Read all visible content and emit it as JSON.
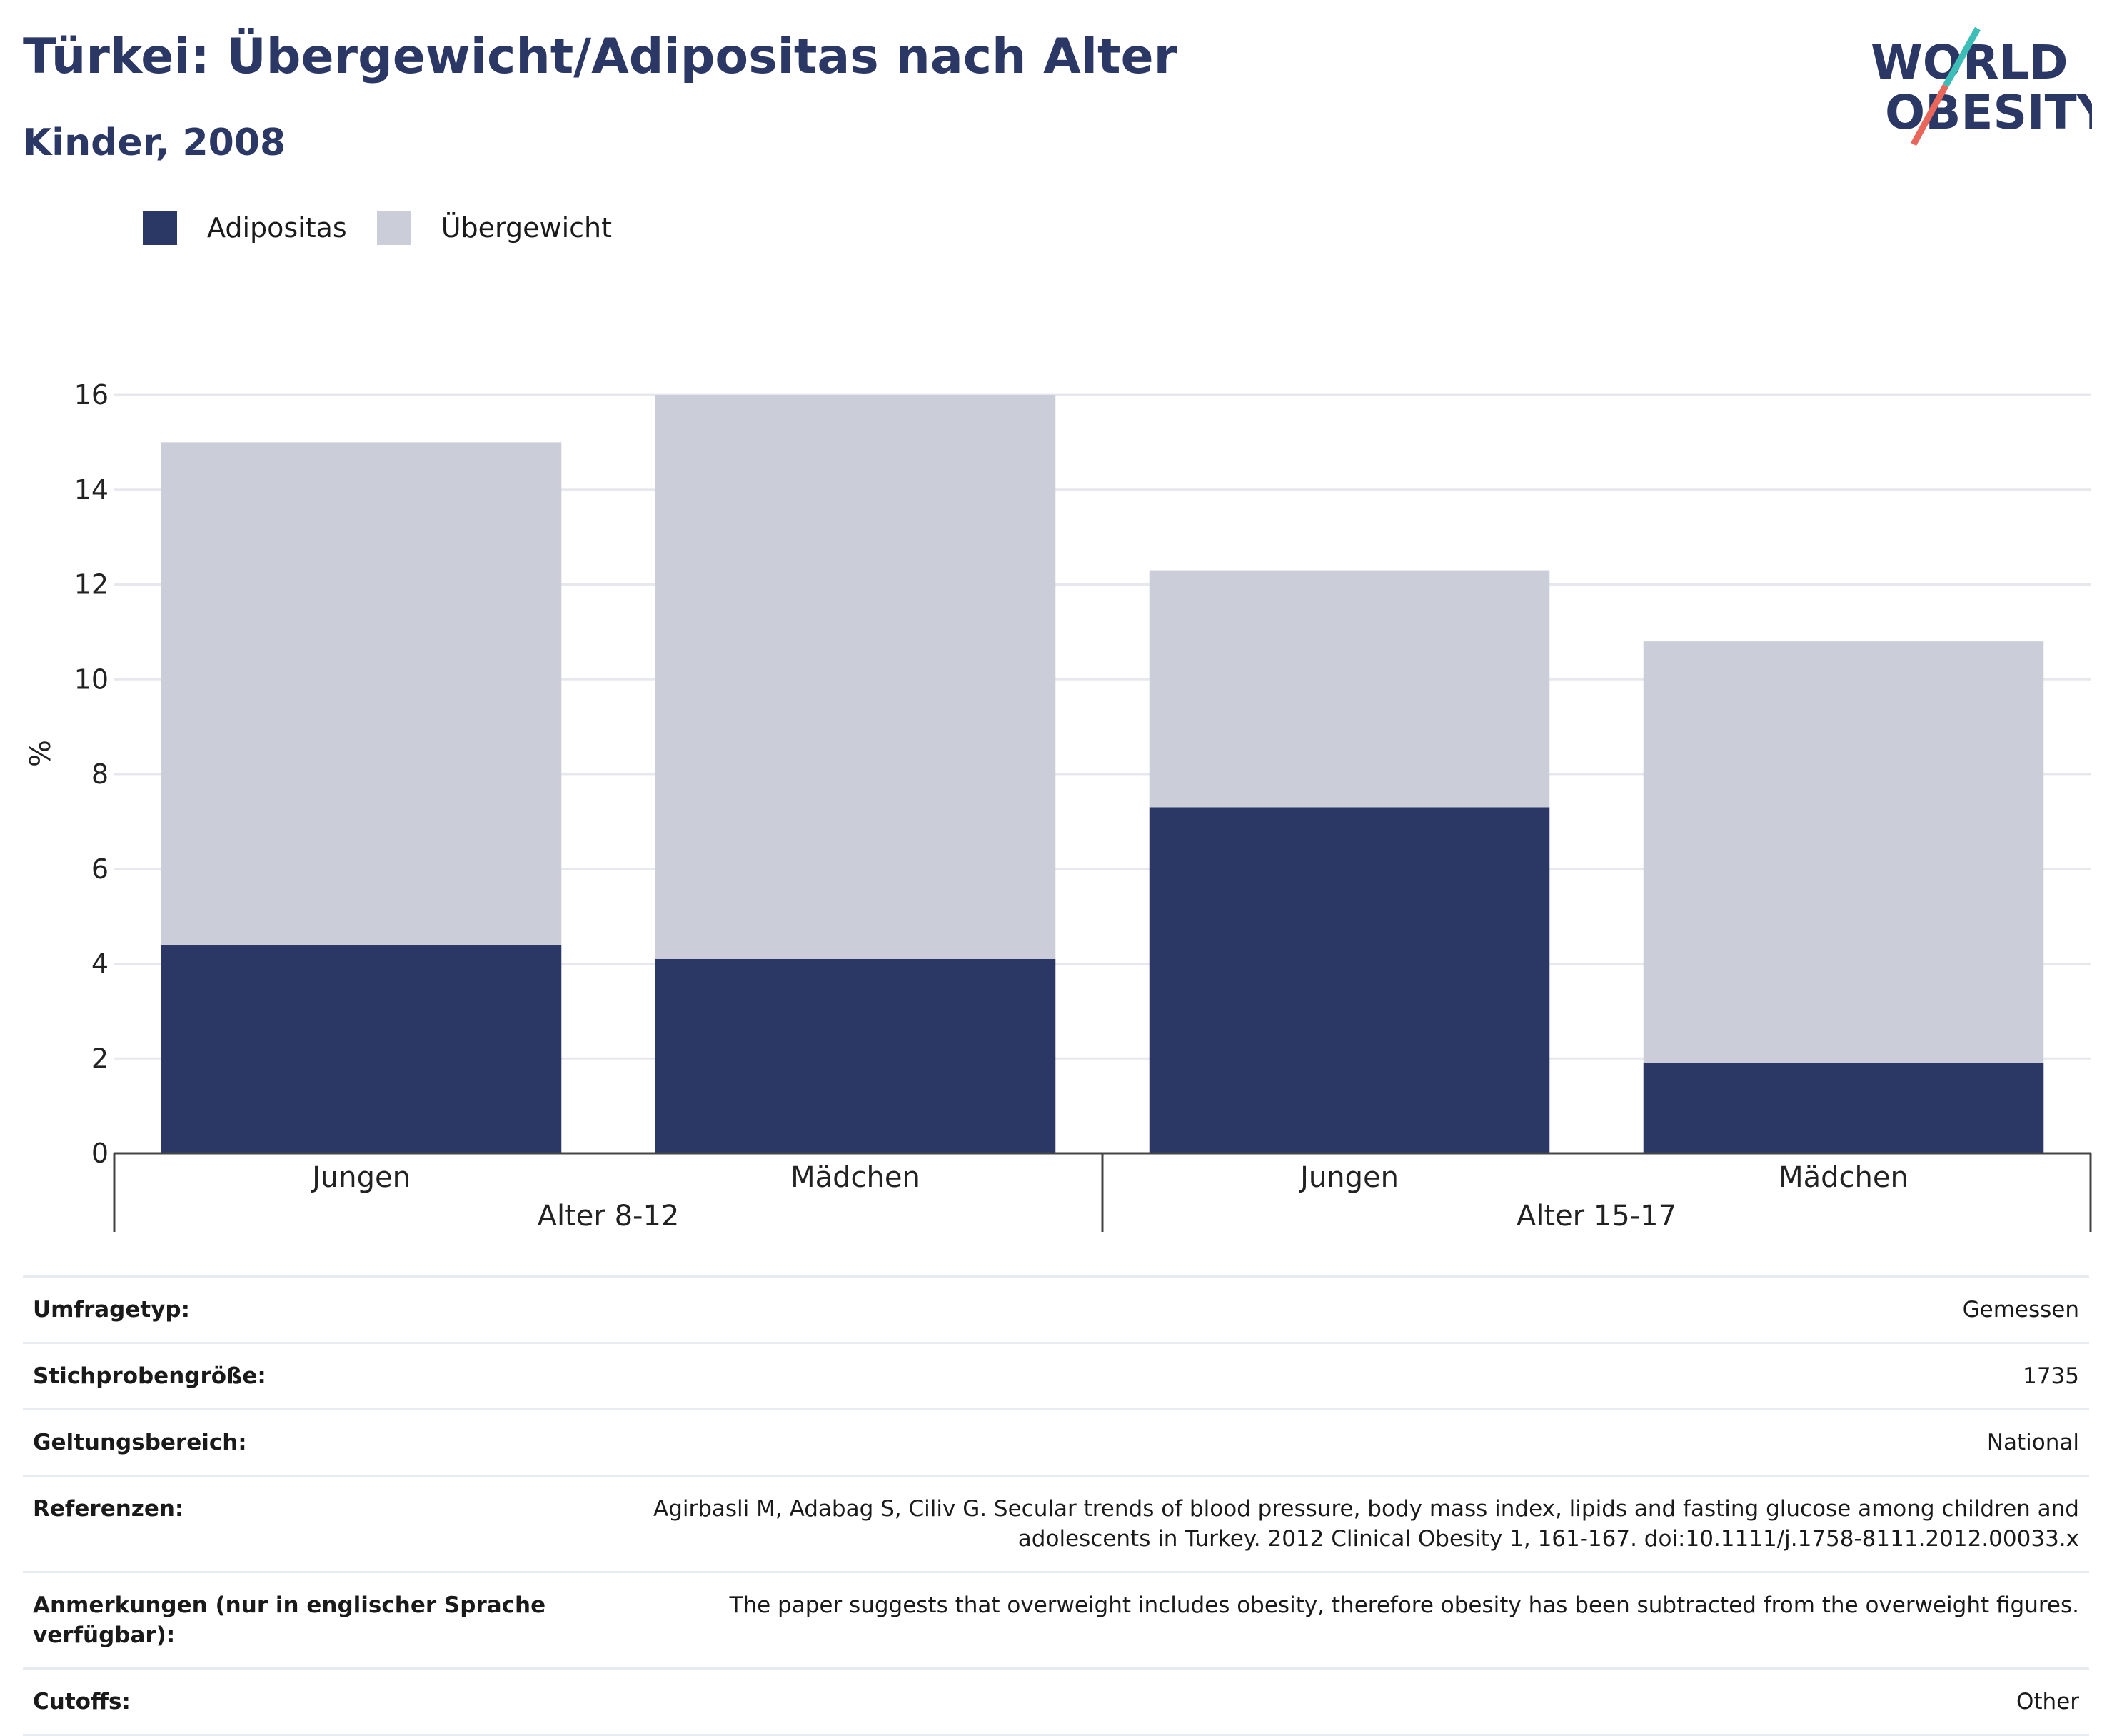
{
  "header": {
    "title": "Türkei: Übergewicht/Adipositas nach Alter",
    "subtitle": "Kinder, 2008"
  },
  "logo": {
    "line1": "WORLD",
    "line2": "OBESITY"
  },
  "colors": {
    "obesity": "#2b3764",
    "overweight": "#cbcdd8",
    "text": "#2b3764"
  },
  "legend": [
    {
      "label": "Adipositas",
      "color": "#2b3764"
    },
    {
      "label": "Übergewicht",
      "color": "#cbcdd8"
    }
  ],
  "chart_data": {
    "type": "bar",
    "stacked": true,
    "ylabel": "%",
    "ylim": [
      0,
      16
    ],
    "yticks": [
      0,
      2,
      4,
      6,
      8,
      10,
      12,
      14,
      16
    ],
    "grid": true,
    "legend_position": "top-left",
    "groups": [
      "Alter 8-12",
      "Alter 15-17"
    ],
    "categories": [
      "Jungen",
      "Mädchen",
      "Jungen",
      "Mädchen"
    ],
    "category_group": [
      0,
      0,
      1,
      1
    ],
    "series": [
      {
        "name": "Adipositas",
        "values": [
          4.4,
          4.1,
          7.3,
          1.9
        ]
      },
      {
        "name": "Übergewicht",
        "values": [
          10.6,
          11.9,
          5.0,
          8.9
        ]
      }
    ]
  },
  "info_table": [
    {
      "label": "Umfragetyp:",
      "value": "Gemessen"
    },
    {
      "label": "Stichprobengröße:",
      "value": "1735"
    },
    {
      "label": "Geltungsbereich:",
      "value": "National"
    },
    {
      "label": "Referenzen:",
      "value": "Agirbasli M, Adabag S, Ciliv G. Secular trends of blood pressure, body mass index, lipids and fasting glucose among children and adolescents in Turkey. 2012 Clinical Obesity 1, 161-167. doi:10.1111/j.1758-8111.2012.00033.x"
    },
    {
      "label": "Anmerkungen (nur in englischer Sprache verfügbar):",
      "value": "The paper suggests that overweight includes obesity, therefore obesity has been subtracted from the overweight figures."
    },
    {
      "label": "Cutoffs:",
      "value": "Other"
    }
  ]
}
